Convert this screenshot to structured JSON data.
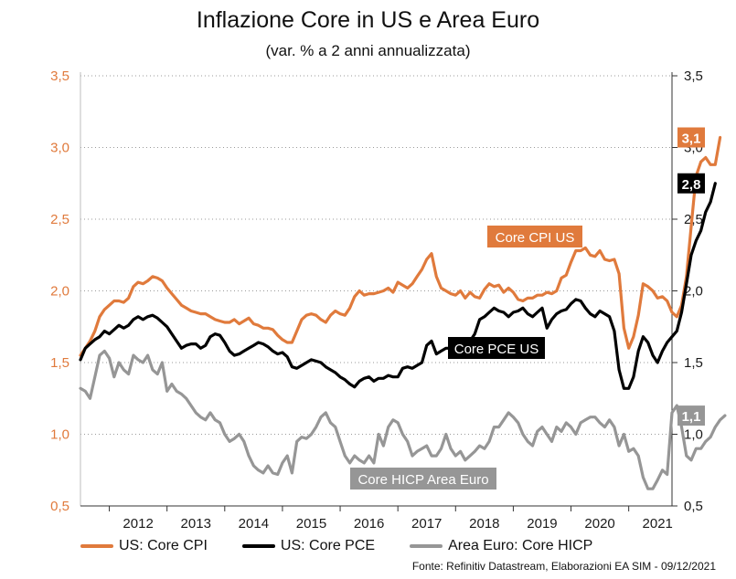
{
  "header": {
    "title": "Inflazione Core in US e Area Euro",
    "subtitle": "(var. % a 2 anni annualizzata)"
  },
  "footer": {
    "source": "Fonte: Refinitiv Datastream, Elaborazioni EA SIM - 09/12/2021"
  },
  "colors": {
    "cpi": "#e07a3c",
    "pce": "#000000",
    "hicp": "#969696",
    "left_axis": "#e07a3c",
    "right_axis": "#1a1a1a"
  },
  "chart_data": {
    "type": "line",
    "title": "Inflazione Core in US e Area Euro",
    "subtitle": "(var. % a 2 anni annualizzata)",
    "x_start_year": 2011.5,
    "x_step_months": 1,
    "ylim_left": [
      0.5,
      3.5
    ],
    "ylim_right": [
      0.5,
      3.5
    ],
    "yticks_left": [
      "3,5",
      "3,0",
      "2,5",
      "2,0",
      "1,5",
      "1,0",
      "0,5"
    ],
    "yticks_right": [
      "3,5",
      "3,0",
      "2,5",
      "2,0",
      "1,5",
      "1,0",
      "0,5"
    ],
    "ytick_values": [
      3.5,
      3.0,
      2.5,
      2.0,
      1.5,
      1.0,
      0.5
    ],
    "xticks": [
      "2012",
      "2013",
      "2014",
      "2015",
      "2016",
      "2017",
      "2018",
      "2019",
      "2020",
      "2021"
    ],
    "grid": "horizontal-dotted",
    "legend_position": "bottom",
    "series": [
      {
        "name": "US: Core CPI",
        "key": "cpi",
        "annotation": "Core CPI US",
        "end_label": "3,1",
        "values": [
          1.55,
          1.6,
          1.65,
          1.72,
          1.82,
          1.87,
          1.9,
          1.93,
          1.93,
          1.92,
          1.95,
          2.03,
          2.06,
          2.05,
          2.07,
          2.1,
          2.09,
          2.07,
          2.02,
          1.98,
          1.94,
          1.9,
          1.88,
          1.86,
          1.85,
          1.84,
          1.84,
          1.82,
          1.8,
          1.79,
          1.78,
          1.78,
          1.8,
          1.77,
          1.79,
          1.81,
          1.77,
          1.76,
          1.74,
          1.74,
          1.73,
          1.69,
          1.66,
          1.64,
          1.64,
          1.72,
          1.8,
          1.83,
          1.84,
          1.83,
          1.8,
          1.78,
          1.83,
          1.86,
          1.84,
          1.83,
          1.88,
          1.96,
          2.0,
          1.97,
          1.98,
          1.98,
          1.99,
          2.0,
          2.02,
          1.99,
          2.06,
          2.04,
          2.02,
          2.05,
          2.1,
          2.15,
          2.22,
          2.26,
          2.1,
          2.02,
          2.0,
          1.98,
          1.97,
          2.0,
          1.95,
          1.99,
          1.96,
          1.95,
          2.01,
          2.05,
          2.03,
          2.04,
          1.99,
          2.02,
          1.99,
          1.94,
          1.93,
          1.95,
          1.95,
          1.97,
          1.97,
          1.99,
          1.98,
          2.0,
          2.09,
          2.11,
          2.2,
          2.28,
          2.28,
          2.3,
          2.25,
          2.24,
          2.28,
          2.22,
          2.21,
          2.22,
          2.12,
          1.74,
          1.6,
          1.68,
          1.83,
          2.05,
          2.03,
          2.0,
          1.95,
          1.96,
          1.93,
          1.85,
          1.82,
          1.9,
          2.1,
          2.45,
          2.8,
          2.9,
          2.93,
          2.88,
          2.88,
          3.07
        ]
      },
      {
        "name": "US: Core PCE",
        "key": "pce",
        "annotation": "Core PCE US",
        "end_label": "2,8",
        "values": [
          1.52,
          1.6,
          1.63,
          1.66,
          1.68,
          1.72,
          1.7,
          1.73,
          1.76,
          1.74,
          1.76,
          1.8,
          1.82,
          1.8,
          1.82,
          1.83,
          1.81,
          1.78,
          1.75,
          1.7,
          1.65,
          1.6,
          1.62,
          1.63,
          1.63,
          1.6,
          1.62,
          1.68,
          1.7,
          1.69,
          1.64,
          1.58,
          1.55,
          1.56,
          1.58,
          1.6,
          1.62,
          1.64,
          1.63,
          1.61,
          1.58,
          1.56,
          1.57,
          1.54,
          1.47,
          1.46,
          1.48,
          1.5,
          1.52,
          1.51,
          1.5,
          1.47,
          1.45,
          1.43,
          1.4,
          1.38,
          1.35,
          1.33,
          1.37,
          1.39,
          1.4,
          1.37,
          1.39,
          1.39,
          1.41,
          1.4,
          1.4,
          1.46,
          1.47,
          1.46,
          1.48,
          1.5,
          1.62,
          1.65,
          1.56,
          1.58,
          1.6,
          1.6,
          1.58,
          1.62,
          1.63,
          1.65,
          1.7,
          1.8,
          1.82,
          1.85,
          1.88,
          1.86,
          1.85,
          1.82,
          1.85,
          1.86,
          1.88,
          1.84,
          1.82,
          1.85,
          1.88,
          1.74,
          1.8,
          1.84,
          1.86,
          1.87,
          1.91,
          1.94,
          1.93,
          1.88,
          1.84,
          1.82,
          1.86,
          1.84,
          1.82,
          1.72,
          1.45,
          1.32,
          1.32,
          1.4,
          1.58,
          1.68,
          1.64,
          1.55,
          1.5,
          1.58,
          1.64,
          1.68,
          1.72,
          1.85,
          2.05,
          2.25,
          2.35,
          2.42,
          2.55,
          2.62,
          2.75
        ]
      },
      {
        "name": "Area Euro: Core HICP",
        "key": "hicp",
        "annotation": "Core HICP Area Euro",
        "end_label": "1,1",
        "values": [
          1.32,
          1.3,
          1.25,
          1.4,
          1.55,
          1.58,
          1.53,
          1.4,
          1.5,
          1.45,
          1.42,
          1.55,
          1.52,
          1.5,
          1.55,
          1.45,
          1.42,
          1.5,
          1.3,
          1.35,
          1.3,
          1.28,
          1.25,
          1.2,
          1.15,
          1.12,
          1.1,
          1.15,
          1.1,
          1.08,
          1.0,
          0.95,
          0.97,
          1.0,
          0.95,
          0.85,
          0.78,
          0.75,
          0.73,
          0.78,
          0.73,
          0.72,
          0.8,
          0.85,
          0.73,
          0.95,
          0.98,
          0.97,
          1.0,
          1.05,
          1.12,
          1.15,
          1.08,
          1.05,
          0.95,
          0.85,
          0.8,
          0.85,
          0.82,
          0.8,
          0.85,
          0.8,
          1.0,
          0.92,
          1.05,
          1.1,
          1.08,
          1.0,
          0.95,
          0.85,
          0.88,
          0.9,
          0.92,
          0.85,
          0.85,
          0.9,
          1.0,
          0.9,
          0.85,
          0.88,
          0.82,
          0.85,
          0.88,
          0.92,
          0.9,
          0.95,
          1.05,
          1.05,
          1.1,
          1.15,
          1.12,
          1.08,
          1.0,
          0.95,
          0.92,
          1.02,
          1.05,
          1.0,
          0.95,
          1.05,
          1.02,
          1.08,
          1.05,
          1.0,
          1.08,
          1.1,
          1.12,
          1.12,
          1.08,
          1.05,
          1.1,
          1.05,
          0.92,
          1.0,
          0.88,
          0.9,
          0.85,
          0.7,
          0.62,
          0.62,
          0.68,
          0.75,
          0.72,
          1.15,
          1.2,
          1.05,
          0.85,
          0.82,
          0.9,
          0.9,
          0.95,
          0.98,
          1.05,
          1.1,
          1.13
        ]
      }
    ]
  }
}
